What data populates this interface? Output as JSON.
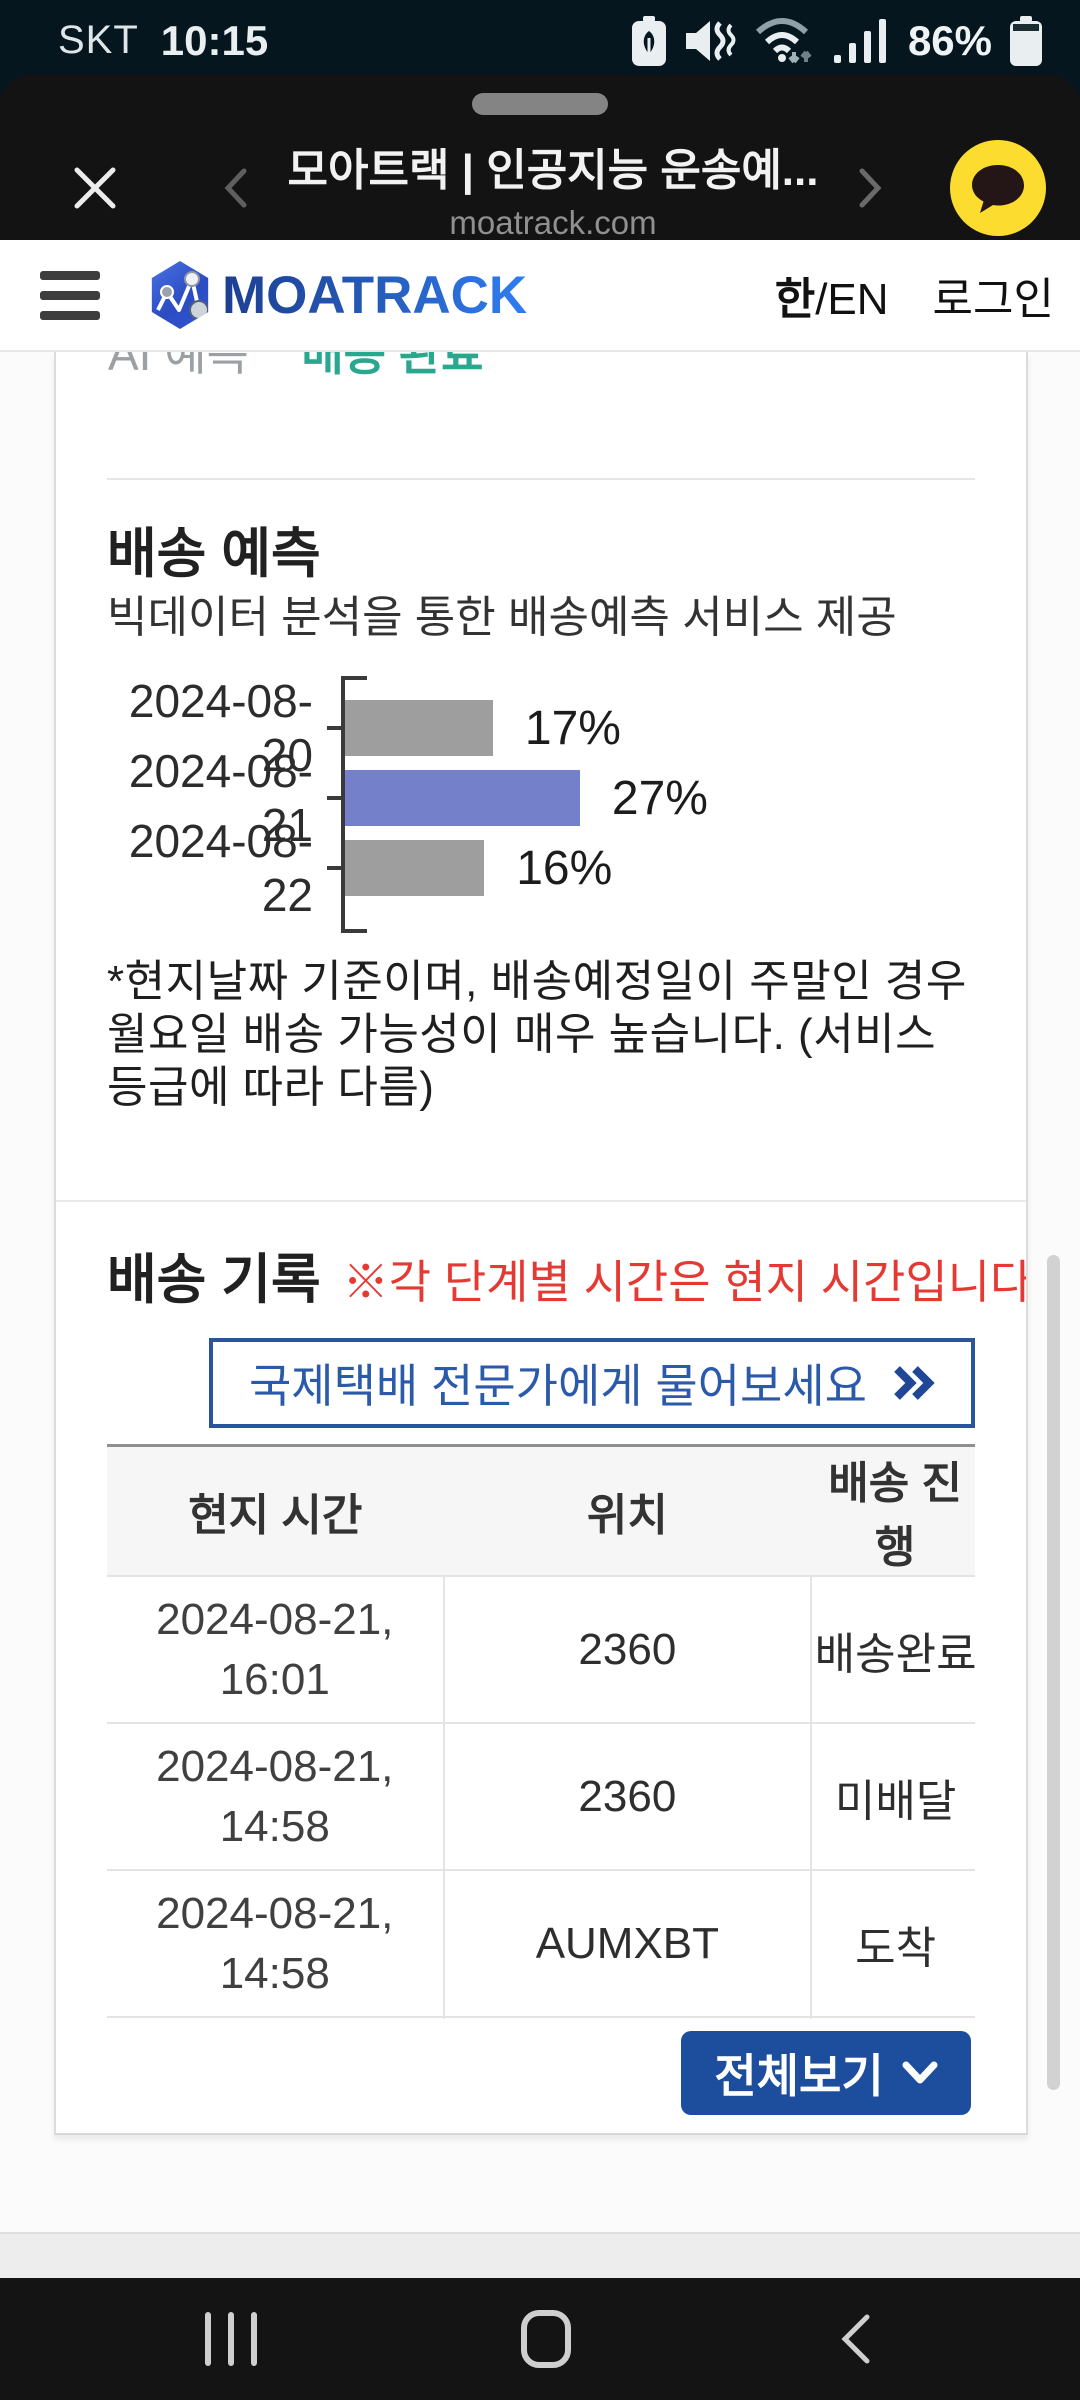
{
  "status_bar": {
    "carrier": "SKT",
    "time": "10:15",
    "battery_percent": "86%"
  },
  "browser": {
    "page_title": "모아트랙 | 인공지능 운송예...",
    "url": "moatrack.com"
  },
  "site_header": {
    "logo_text": "MOATRACK",
    "lang_current": "한",
    "lang_alt": "/EN",
    "login_label": "로그인"
  },
  "status_row": {
    "label": "AI 예측",
    "value": "배송 완료"
  },
  "prediction": {
    "title": "배송 예측",
    "subtitle": "빅데이터 분석을 통한 배송예측 서비스 제공",
    "note": "*현지날짜 기준이며, 배송예정일이 주말인 경우 월요일 배송 가능성이 매우 높습니다. (서비스 등급에 따라 다름)"
  },
  "chart_data": {
    "type": "bar",
    "orientation": "horizontal",
    "categories": [
      "2024-08-20",
      "2024-08-21",
      "2024-08-22"
    ],
    "values": [
      17,
      27,
      16
    ],
    "value_labels": [
      "17%",
      "27%",
      "16%"
    ],
    "highlight_index": 1,
    "bar_color": "#9e9e9e",
    "highlight_color": "#7580cb",
    "xlim": [
      0,
      30
    ],
    "grid": false,
    "title": "",
    "xlabel": "",
    "ylabel": ""
  },
  "history": {
    "title": "배송 기록",
    "notice": "※각 단계별 시간은 현지 시간입니다.",
    "expert_button_label": "국제택배 전문가에게 물어보세요",
    "view_all_label": "전체보기",
    "table": {
      "headers": [
        "현지 시간",
        "위치",
        "배송 진행"
      ],
      "rows": [
        {
          "time_line1": "2024-08-21,",
          "time_line2": "16:01",
          "location": "2360",
          "status": "배송완료"
        },
        {
          "time_line1": "2024-08-21,",
          "time_line2": "14:58",
          "location": "2360",
          "status": "미배달"
        },
        {
          "time_line1": "2024-08-21,",
          "time_line2": "14:58",
          "location": "AUMXBT",
          "status": "도착"
        },
        {
          "time_line1": "",
          "time_line2": "",
          "location": "",
          "status": ""
        }
      ]
    }
  },
  "colors": {
    "accent_blue": "#1d4e9e",
    "logo_blue_dark": "#1d3f94",
    "logo_blue_light": "#2f7df2",
    "status_teal": "#2aa78e",
    "notice_red": "#e53a34",
    "kakao_yellow": "#fbdc2f"
  }
}
